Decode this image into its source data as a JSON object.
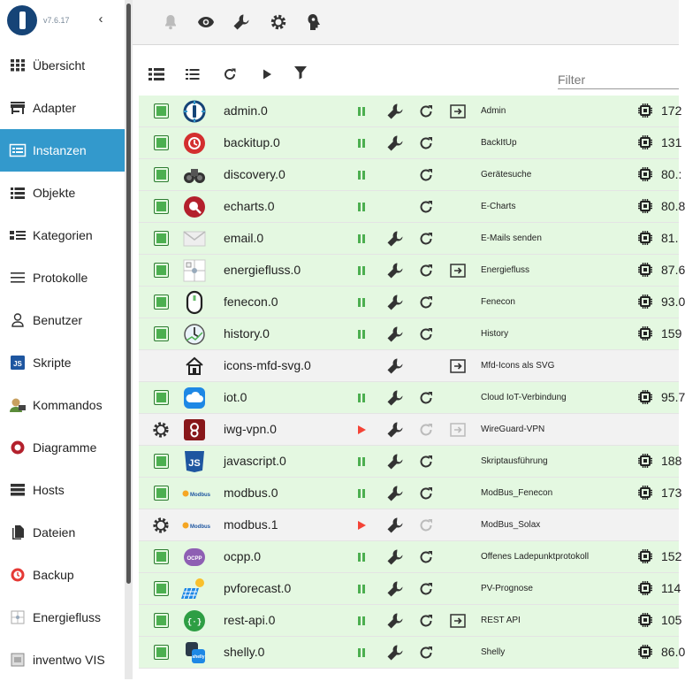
{
  "app": {
    "version": "v7.6.17"
  },
  "sidebar": {
    "items": [
      {
        "label": "Übersicht",
        "icon": "grid-icon"
      },
      {
        "label": "Adapter",
        "icon": "store-icon"
      },
      {
        "label": "Instanzen",
        "icon": "instances-icon",
        "active": true
      },
      {
        "label": "Objekte",
        "icon": "list-icon"
      },
      {
        "label": "Kategorien",
        "icon": "categories-icon"
      },
      {
        "label": "Protokolle",
        "icon": "log-icon"
      },
      {
        "label": "Benutzer",
        "icon": "user-icon"
      },
      {
        "label": "Skripte",
        "icon": "javascript-icon"
      },
      {
        "label": "Kommandos",
        "icon": "kommandos-icon"
      },
      {
        "label": "Diagramme",
        "icon": "echarts-icon"
      },
      {
        "label": "Hosts",
        "icon": "hosts-icon"
      },
      {
        "label": "Dateien",
        "icon": "files-icon"
      },
      {
        "label": "Backup",
        "icon": "backup-icon"
      },
      {
        "label": "Energiefluss",
        "icon": "energy-icon"
      },
      {
        "label": "inventwo VIS",
        "icon": "vis-icon"
      }
    ]
  },
  "filter": {
    "placeholder": "Filter"
  },
  "instances": [
    {
      "name": "admin.0",
      "title": "Admin",
      "mem": "172",
      "enabled": true,
      "run": "pause",
      "config": true,
      "link": true,
      "icon": "admin"
    },
    {
      "name": "backitup.0",
      "title": "BackItUp",
      "mem": "131",
      "enabled": true,
      "run": "pause",
      "config": true,
      "link": false,
      "icon": "backitup"
    },
    {
      "name": "discovery.0",
      "title": "Gerätesuche",
      "mem": "80.:",
      "enabled": true,
      "run": "pause",
      "config": false,
      "link": false,
      "icon": "discovery"
    },
    {
      "name": "echarts.0",
      "title": "E-Charts",
      "mem": "80.8",
      "enabled": true,
      "run": "pause",
      "config": false,
      "link": false,
      "icon": "echarts"
    },
    {
      "name": "email.0",
      "title": "E-Mails senden",
      "mem": "81.",
      "enabled": true,
      "run": "pause",
      "config": true,
      "link": false,
      "icon": "email"
    },
    {
      "name": "energiefluss.0",
      "title": "Energiefluss",
      "mem": "87.6",
      "enabled": true,
      "run": "pause",
      "config": true,
      "link": true,
      "icon": "energiefluss"
    },
    {
      "name": "fenecon.0",
      "title": "Fenecon",
      "mem": "93.0",
      "enabled": true,
      "run": "pause",
      "config": true,
      "link": false,
      "icon": "fenecon"
    },
    {
      "name": "history.0",
      "title": "History",
      "mem": "159",
      "enabled": true,
      "run": "pause",
      "config": true,
      "link": false,
      "icon": "history"
    },
    {
      "name": "icons-mfd-svg.0",
      "title": "Mfd-Icons als SVG",
      "mem": "",
      "enabled": null,
      "run": "none",
      "config": true,
      "link": true,
      "icon": "mfd"
    },
    {
      "name": "iot.0",
      "title": "Cloud IoT-Verbindung",
      "mem": "95.7",
      "enabled": true,
      "run": "pause",
      "config": true,
      "link": false,
      "icon": "iot"
    },
    {
      "name": "iwg-vpn.0",
      "title": "WireGuard-VPN",
      "mem": "",
      "enabled": false,
      "run": "play",
      "config": true,
      "link": true,
      "icon": "wireguard"
    },
    {
      "name": "javascript.0",
      "title": "Skriptausführung",
      "mem": "188",
      "enabled": true,
      "run": "pause",
      "config": true,
      "link": false,
      "icon": "javascript"
    },
    {
      "name": "modbus.0",
      "title": "ModBus_Fenecon",
      "mem": "173",
      "enabled": true,
      "run": "pause",
      "config": true,
      "link": false,
      "icon": "modbus"
    },
    {
      "name": "modbus.1",
      "title": "ModBus_Solax",
      "mem": "",
      "enabled": false,
      "run": "play",
      "config": true,
      "link": false,
      "icon": "modbus"
    },
    {
      "name": "ocpp.0",
      "title": "Offenes Ladepunktprotokoll",
      "mem": "152",
      "enabled": true,
      "run": "pause",
      "config": true,
      "link": false,
      "icon": "ocpp"
    },
    {
      "name": "pvforecast.0",
      "title": "PV-Prognose",
      "mem": "114",
      "enabled": true,
      "run": "pause",
      "config": true,
      "link": false,
      "icon": "pvforecast"
    },
    {
      "name": "rest-api.0",
      "title": "REST API",
      "mem": "105",
      "enabled": true,
      "run": "pause",
      "config": true,
      "link": true,
      "icon": "restapi"
    },
    {
      "name": "shelly.0",
      "title": "Shelly",
      "mem": "86.0",
      "enabled": true,
      "run": "pause",
      "config": true,
      "link": false,
      "icon": "shelly"
    }
  ]
}
